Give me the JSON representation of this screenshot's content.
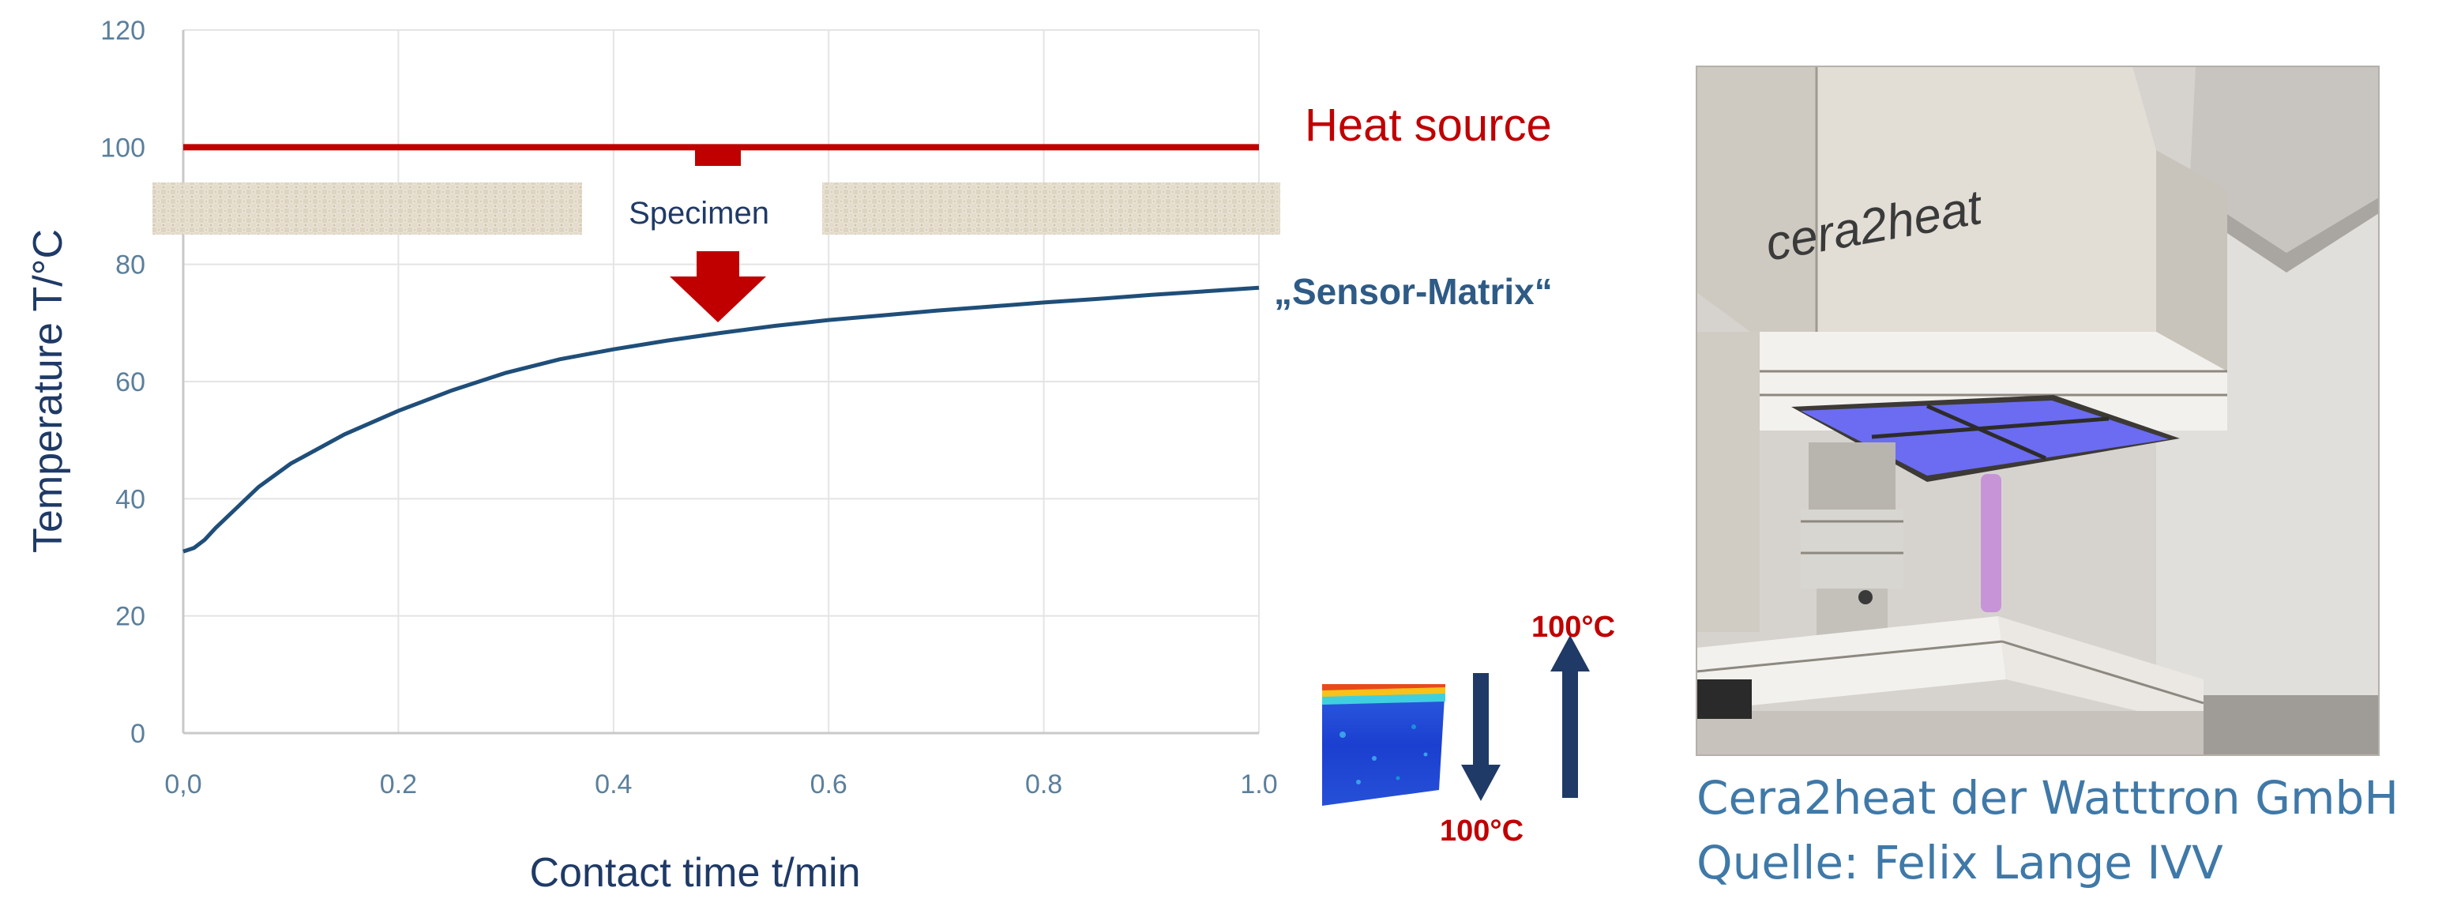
{
  "chart_data": {
    "type": "line",
    "xlabel": "Contact time t/min",
    "ylabel": "Temperature T/°C",
    "xlim": [
      0,
      1.0
    ],
    "ylim": [
      0,
      120
    ],
    "xticks": [
      "0,0",
      "0.2",
      "0.4",
      "0.6",
      "0.8",
      "1.0"
    ],
    "yticks": [
      "0",
      "20",
      "40",
      "60",
      "80",
      "100",
      "120"
    ],
    "grid": true,
    "series": [
      {
        "name": "„Sensor-Matrix“",
        "color": "#1f4e79",
        "x": [
          0.0,
          0.01,
          0.02,
          0.03,
          0.05,
          0.07,
          0.1,
          0.15,
          0.2,
          0.25,
          0.3,
          0.35,
          0.4,
          0.45,
          0.5,
          0.55,
          0.6,
          0.65,
          0.7,
          0.75,
          0.8,
          0.85,
          0.9,
          0.95,
          1.0
        ],
        "y": [
          31,
          31.6,
          33,
          35,
          38.5,
          42,
          46,
          51,
          55,
          58.5,
          61.5,
          63.8,
          65.5,
          67,
          68.3,
          69.5,
          70.5,
          71.3,
          72.1,
          72.8,
          73.5,
          74.1,
          74.8,
          75.4,
          76
        ]
      }
    ],
    "heat_source": {
      "label": "Heat source",
      "y": 100,
      "color": "#c00000"
    },
    "specimen_label": "Specimen"
  },
  "inset": {
    "up_label": "100°C",
    "down_label": "100°C",
    "label_color": "#c00000",
    "arrow_color": "#1f3a66"
  },
  "photo": {
    "brand_text": "cera2heat",
    "caption_line1": "Cera2heat der Watttron GmbH",
    "caption_line2": "Quelle: Felix Lange IVV"
  }
}
